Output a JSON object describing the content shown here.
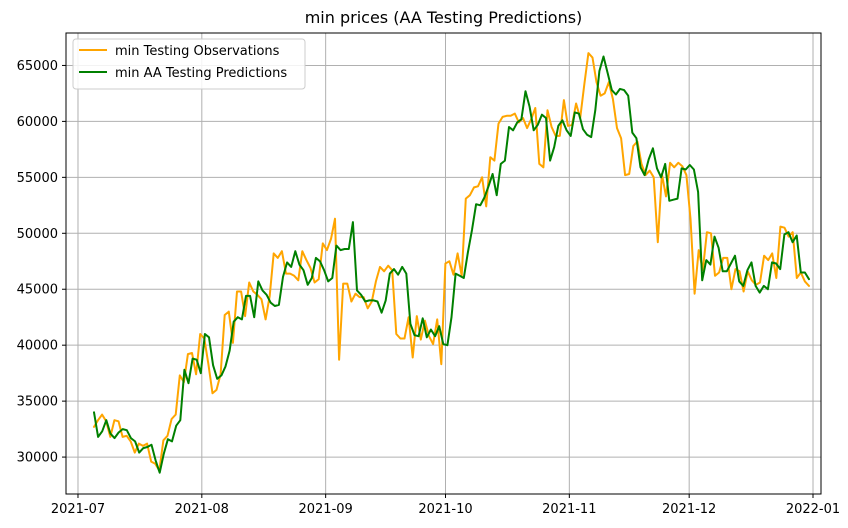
{
  "chart_data": {
    "type": "line",
    "title": "min prices (AA Testing Predictions)",
    "xlabel": "",
    "ylabel": "",
    "grid": true,
    "legend_position": "top-left",
    "x_ticks": [
      "2021-07",
      "2021-08",
      "2021-09",
      "2021-10",
      "2021-11",
      "2021-12",
      "2022-01"
    ],
    "y_ticks": [
      "30000",
      "35000",
      "40000",
      "45000",
      "50000",
      "55000",
      "60000",
      "65000"
    ],
    "xlim": [
      "2021-06-28",
      "2022-01-03"
    ],
    "ylim": [
      26700,
      67900
    ],
    "x_start": "2021-07-05",
    "x_end": "2021-12-31",
    "series": [
      {
        "name": "min Testing Observations",
        "color": "#ffa500",
        "values": [
          32700,
          33300,
          33800,
          33200,
          31800,
          33300,
          33200,
          31800,
          31900,
          31400,
          30400,
          31200,
          31000,
          31200,
          29600,
          29400,
          28800,
          31500,
          31900,
          33400,
          33800,
          37300,
          36700,
          39200,
          39300,
          37400,
          41000,
          40600,
          38300,
          35700,
          36000,
          37400,
          42700,
          43000,
          40200,
          44800,
          44800,
          42600,
          45600,
          44800,
          44500,
          44100,
          42300,
          44400,
          48200,
          47800,
          48400,
          46400,
          46400,
          46200,
          45800,
          48400,
          47600,
          46900,
          45600,
          45900,
          49100,
          48500,
          49500,
          51300,
          38700,
          45500,
          45500,
          43900,
          44600,
          44300,
          44300,
          43300,
          43900,
          45700,
          47000,
          46600,
          47100,
          46700,
          41000,
          40600,
          40600,
          42500,
          38900,
          42600,
          40500,
          42200,
          40800,
          40100,
          42300,
          38300,
          47300,
          47500,
          46300,
          48200,
          46200,
          53100,
          53400,
          54100,
          54200,
          55000,
          52400,
          56800,
          56500,
          59800,
          60400,
          60500,
          60500,
          60700,
          59900,
          60300,
          59400,
          60200,
          61200,
          56200,
          55900,
          61000,
          59500,
          58700,
          58700,
          61900,
          59600,
          59700,
          61600,
          60300,
          63300,
          66100,
          65700,
          63500,
          62300,
          62500,
          63500,
          62000,
          59400,
          58500,
          55200,
          55300,
          57800,
          58200,
          56200,
          55200,
          55600,
          55000,
          49200,
          55300,
          53300,
          56300,
          55900,
          56300,
          56000,
          55200,
          51300,
          44600,
          48500,
          46700,
          50100,
          50000,
          46200,
          46500,
          47800,
          47800,
          45000,
          46800,
          46600,
          44800,
          46600,
          45800,
          45400,
          45600,
          48000,
          47600,
          48200,
          46000,
          50600,
          50500,
          49700,
          50100,
          46000,
          46500,
          45700,
          45300
        ]
      },
      {
        "name": "min AA Testing Predictions",
        "color": "#008000",
        "values": [
          34000,
          31800,
          32300,
          33300,
          32100,
          31700,
          32200,
          32500,
          32400,
          31700,
          31400,
          30400,
          30800,
          30900,
          31100,
          29700,
          28600,
          30300,
          31600,
          31400,
          32800,
          33300,
          37800,
          36600,
          38800,
          38700,
          37500,
          41000,
          40700,
          38200,
          37000,
          37300,
          38100,
          39500,
          42100,
          42500,
          42300,
          44400,
          44400,
          42500,
          45700,
          44900,
          44500,
          43800,
          43500,
          43600,
          46100,
          47400,
          47000,
          48400,
          47200,
          46700,
          45400,
          46000,
          47800,
          47500,
          46700,
          45700,
          46000,
          48900,
          48500,
          48600,
          48600,
          51000,
          44900,
          44500,
          43900,
          44000,
          44000,
          43900,
          42900,
          44000,
          46400,
          46800,
          46300,
          47000,
          46400,
          41900,
          40900,
          40800,
          42400,
          40700,
          41400,
          40800,
          41700,
          40100,
          40000,
          42500,
          46400,
          46200,
          46000,
          48300,
          50300,
          52600,
          52500,
          53200,
          54200,
          55300,
          53400,
          56200,
          56500,
          59500,
          59200,
          59900,
          60200,
          62700,
          61300,
          59200,
          59700,
          60600,
          60300,
          56500,
          57700,
          59600,
          60100,
          59200,
          58700,
          60800,
          60700,
          59300,
          58800,
          58600,
          61000,
          64500,
          65800,
          64300,
          62800,
          62400,
          62900,
          62800,
          62300,
          59000,
          58500,
          55900,
          55200,
          56600,
          57600,
          55800,
          55000,
          56200,
          52900,
          53000,
          53100,
          55800,
          55700,
          56100,
          55700,
          53700,
          45800,
          47600,
          47200,
          49700,
          48700,
          46600,
          46600,
          47300,
          48000,
          45700,
          45300,
          46700,
          47400,
          45300,
          44700,
          45300,
          45000,
          47400,
          47300,
          46800,
          49900,
          50100,
          49200,
          49800,
          46500,
          46500,
          45900
        ]
      }
    ]
  }
}
